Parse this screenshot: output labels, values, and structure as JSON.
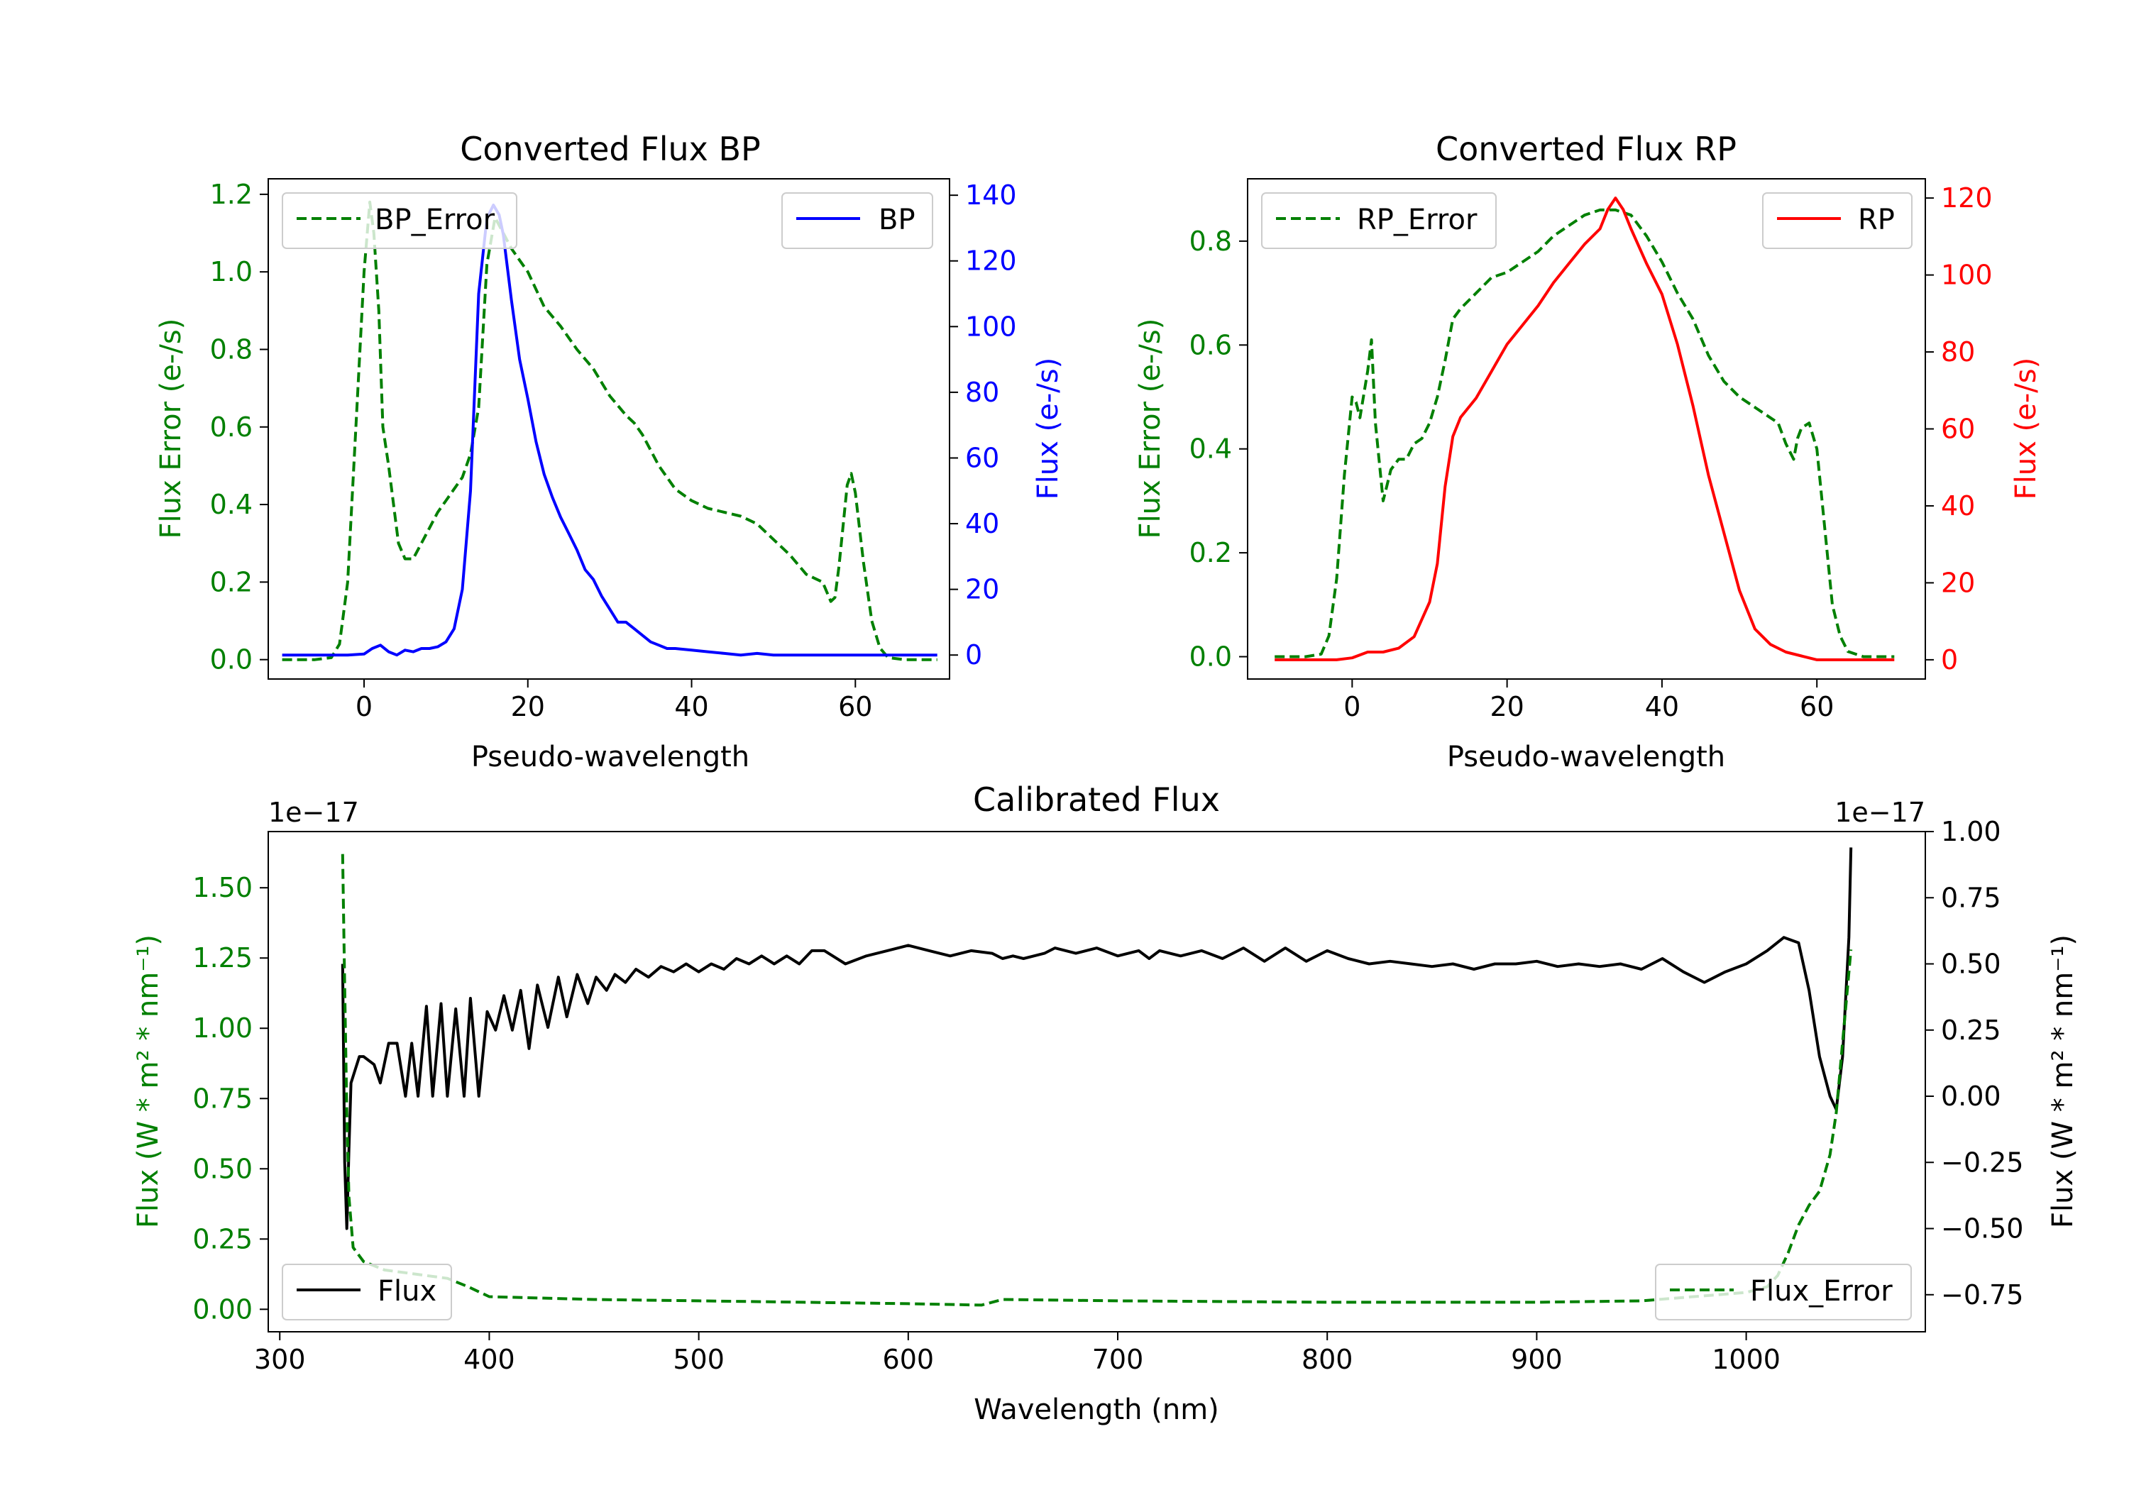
{
  "chart_data": [
    {
      "id": "bp",
      "type": "line",
      "title": "Converted Flux BP",
      "xlabel": "Pseudo-wavelength",
      "ylabel_left": "Flux Error (e-/s)",
      "ylabel_right": "Flux (e-/s)",
      "xlim": [
        -11.7,
        71.5
      ],
      "ylim_left": [
        -0.05,
        1.24
      ],
      "ylim_right": [
        -7.3,
        145
      ],
      "xticks": [
        0,
        20,
        40,
        60
      ],
      "xtick_labels": [
        "0",
        "20",
        "40",
        "60"
      ],
      "yticks_left": [
        0.0,
        0.2,
        0.4,
        0.6,
        0.8,
        1.0,
        1.2
      ],
      "ytick_labels_left": [
        "0.0",
        "0.2",
        "0.4",
        "0.6",
        "0.8",
        "1.0",
        "1.2"
      ],
      "yticks_right": [
        0,
        20,
        40,
        60,
        80,
        100,
        120,
        140
      ],
      "ytick_labels_right": [
        "0",
        "20",
        "40",
        "60",
        "80",
        "100",
        "120",
        "140"
      ],
      "left_color": "#008000",
      "right_color": "#0000ff",
      "series": [
        {
          "name": "BP_Error",
          "axis": "left",
          "color": "#008000",
          "style": "dashed",
          "x": [
            -10,
            -6,
            -4,
            -3,
            -2,
            -1,
            0,
            0.7,
            1.2,
            1.8,
            2.3,
            3,
            3.3,
            4.2,
            5,
            6,
            7,
            8,
            9,
            10,
            11,
            12,
            13,
            14,
            15,
            16,
            17,
            18,
            19,
            20,
            22,
            24,
            26,
            28,
            30,
            32,
            33,
            34,
            36,
            38,
            40,
            42,
            44,
            46,
            48,
            50,
            52,
            54,
            55,
            56,
            57,
            57.5,
            58,
            59,
            59.5,
            60,
            61,
            62,
            63,
            64,
            66,
            68,
            70
          ],
          "y": [
            0.0,
            0.0,
            0.005,
            0.04,
            0.2,
            0.6,
            1.0,
            1.18,
            1.1,
            0.9,
            0.6,
            0.5,
            0.45,
            0.3,
            0.26,
            0.26,
            0.3,
            0.34,
            0.38,
            0.41,
            0.44,
            0.47,
            0.53,
            0.65,
            1.02,
            1.14,
            1.1,
            1.06,
            1.03,
            1.0,
            0.91,
            0.86,
            0.8,
            0.75,
            0.68,
            0.63,
            0.61,
            0.58,
            0.5,
            0.44,
            0.41,
            0.39,
            0.38,
            0.37,
            0.35,
            0.31,
            0.27,
            0.22,
            0.21,
            0.2,
            0.15,
            0.16,
            0.24,
            0.45,
            0.48,
            0.43,
            0.25,
            0.1,
            0.03,
            0.005,
            0.0,
            0.0,
            0.0
          ]
        },
        {
          "name": "BP",
          "axis": "right",
          "color": "#0000ff",
          "style": "solid",
          "x": [
            -10,
            -6,
            -4,
            -2,
            0,
            1,
            2,
            3,
            4,
            5,
            6,
            7,
            8,
            9,
            10,
            11,
            12,
            13,
            14,
            15,
            15.8,
            16.5,
            17,
            18,
            19,
            20,
            21,
            22,
            23,
            24,
            25,
            26,
            27,
            28,
            29,
            30,
            31,
            32,
            33,
            34,
            35,
            36,
            37,
            38,
            40,
            42,
            44,
            46,
            48,
            50,
            52,
            54,
            56,
            58,
            60,
            62,
            64,
            66,
            68,
            70
          ],
          "y": [
            0,
            0,
            0,
            0,
            0.3,
            2,
            3,
            1,
            0,
            1.5,
            1,
            2,
            2,
            2.5,
            4,
            8,
            20,
            50,
            110,
            133,
            137,
            134,
            128,
            108,
            90,
            78,
            65,
            55,
            48,
            42,
            37,
            32,
            26,
            23,
            18,
            14,
            10,
            10,
            8,
            6,
            4,
            3,
            2,
            2,
            1.5,
            1,
            0.5,
            0,
            0.5,
            0,
            0,
            0,
            0,
            0,
            0,
            0,
            0,
            0,
            0,
            0
          ]
        }
      ],
      "legend": [
        {
          "label": "BP_Error",
          "color": "#008000",
          "style": "dashed",
          "position": "upper-left"
        },
        {
          "label": "BP",
          "color": "#0000ff",
          "style": "solid",
          "position": "upper-right"
        }
      ]
    },
    {
      "id": "rp",
      "type": "line",
      "title": "Converted Flux RP",
      "xlabel": "Pseudo-wavelength",
      "ylabel_left": "Flux Error (e-/s)",
      "ylabel_right": "Flux (e-/s)",
      "xlim": [
        -13.5,
        74
      ],
      "ylim_left": [
        -0.043,
        0.92
      ],
      "ylim_right": [
        -5,
        125
      ],
      "xticks": [
        0,
        20,
        40,
        60
      ],
      "xtick_labels": [
        "0",
        "20",
        "40",
        "60"
      ],
      "yticks_left": [
        0.0,
        0.2,
        0.4,
        0.6,
        0.8
      ],
      "ytick_labels_left": [
        "0.0",
        "0.2",
        "0.4",
        "0.6",
        "0.8"
      ],
      "yticks_right": [
        0,
        20,
        40,
        60,
        80,
        100,
        120
      ],
      "ytick_labels_right": [
        "0",
        "20",
        "40",
        "60",
        "80",
        "100",
        "120"
      ],
      "left_color": "#008000",
      "right_color": "#ff0000",
      "series": [
        {
          "name": "RP_Error",
          "axis": "left",
          "color": "#008000",
          "style": "dashed",
          "x": [
            -10,
            -6,
            -4,
            -3,
            -2,
            -1,
            0,
            0.5,
            1,
            2,
            2.5,
            3,
            4,
            5,
            6,
            7,
            8,
            9,
            10,
            11,
            12,
            13,
            14,
            16,
            18,
            20,
            22,
            24,
            26,
            28,
            30,
            32,
            34,
            36,
            38,
            40,
            42,
            44,
            46,
            48,
            50,
            52,
            54,
            55,
            56,
            57,
            57.5,
            58,
            59,
            60,
            61,
            62,
            63,
            64,
            66,
            68,
            70
          ],
          "y": [
            0.0,
            0.0,
            0.005,
            0.04,
            0.15,
            0.35,
            0.5,
            0.49,
            0.46,
            0.55,
            0.61,
            0.45,
            0.3,
            0.36,
            0.38,
            0.38,
            0.41,
            0.42,
            0.45,
            0.5,
            0.57,
            0.65,
            0.67,
            0.7,
            0.73,
            0.74,
            0.76,
            0.78,
            0.81,
            0.83,
            0.85,
            0.86,
            0.86,
            0.85,
            0.81,
            0.76,
            0.7,
            0.65,
            0.58,
            0.53,
            0.5,
            0.48,
            0.46,
            0.45,
            0.41,
            0.38,
            0.42,
            0.44,
            0.45,
            0.4,
            0.25,
            0.1,
            0.04,
            0.01,
            0.0,
            0.0,
            0.0
          ]
        },
        {
          "name": "RP",
          "axis": "right",
          "color": "#ff0000",
          "style": "solid",
          "x": [
            -10,
            -6,
            -4,
            -2,
            0,
            2,
            4,
            6,
            8,
            10,
            11,
            12,
            13,
            14,
            16,
            18,
            20,
            22,
            24,
            26,
            28,
            30,
            32,
            33,
            34,
            35,
            36,
            38,
            40,
            42,
            44,
            46,
            48,
            50,
            52,
            54,
            56,
            58,
            60,
            62,
            64,
            66,
            68,
            70
          ],
          "y": [
            0,
            0,
            0,
            0,
            0.5,
            2,
            2,
            3,
            6,
            15,
            25,
            45,
            58,
            63,
            68,
            75,
            82,
            87,
            92,
            98,
            103,
            108,
            112,
            117,
            120,
            117,
            112,
            103,
            95,
            82,
            66,
            48,
            33,
            18,
            8,
            4,
            2,
            1,
            0,
            0,
            0,
            0,
            0,
            0
          ]
        }
      ],
      "legend": [
        {
          "label": "RP_Error",
          "color": "#008000",
          "style": "dashed",
          "position": "upper-left"
        },
        {
          "label": "RP",
          "color": "#ff0000",
          "style": "solid",
          "position": "upper-right"
        }
      ]
    },
    {
      "id": "cal",
      "type": "line",
      "title": "Calibrated Flux",
      "xlabel": "Wavelength (nm)",
      "ylabel_left": "Flux (W * m² * nm⁻¹)",
      "ylabel_right": "Flux (W * m² * nm⁻¹)",
      "offset_left": "1e−17",
      "offset_right": "1e−17",
      "xlim": [
        294.5,
        1085.5
      ],
      "ylim_left": [
        -0.08,
        1.7
      ],
      "ylim_right": [
        -0.89,
        1.0
      ],
      "xticks": [
        300,
        400,
        500,
        600,
        700,
        800,
        900,
        1000
      ],
      "xtick_labels": [
        "300",
        "400",
        "500",
        "600",
        "700",
        "800",
        "900",
        "1000"
      ],
      "yticks_left": [
        0.0,
        0.25,
        0.5,
        0.75,
        1.0,
        1.25,
        1.5
      ],
      "ytick_labels_left": [
        "0.00",
        "0.25",
        "0.50",
        "0.75",
        "1.00",
        "1.25",
        "1.50"
      ],
      "yticks_right": [
        -0.75,
        -0.5,
        -0.25,
        0.0,
        0.25,
        0.5,
        0.75,
        1.0
      ],
      "ytick_labels_right": [
        "−0.75",
        "−0.50",
        "−0.25",
        "0.00",
        "0.25",
        "0.50",
        "0.75",
        "1.00"
      ],
      "left_color": "#008000",
      "right_color": "#000000",
      "series": [
        {
          "name": "Flux",
          "axis": "right",
          "color": "#000000",
          "style": "solid",
          "x": [
            330,
            331,
            332,
            333,
            334,
            336,
            338,
            340,
            345,
            348,
            352,
            356,
            360,
            363,
            366,
            370,
            373,
            377,
            380,
            384,
            388,
            391,
            395,
            399,
            403,
            407,
            411,
            415,
            419,
            423,
            428,
            433,
            437,
            442,
            447,
            451,
            456,
            460,
            465,
            470,
            476,
            482,
            488,
            494,
            500,
            506,
            512,
            518,
            524,
            530,
            536,
            542,
            548,
            554,
            560,
            570,
            580,
            590,
            600,
            610,
            620,
            630,
            640,
            645,
            650,
            655,
            660,
            665,
            670,
            680,
            690,
            700,
            710,
            715,
            720,
            730,
            740,
            750,
            760,
            770,
            780,
            790,
            800,
            810,
            820,
            830,
            840,
            850,
            860,
            870,
            880,
            890,
            900,
            910,
            920,
            930,
            940,
            950,
            960,
            970,
            980,
            990,
            1000,
            1010,
            1018,
            1025,
            1030,
            1035,
            1040,
            1043,
            1046,
            1049,
            1050
          ],
          "y": [
            0.5,
            -0.25,
            -0.5,
            -0.2,
            0.05,
            0.1,
            0.15,
            0.15,
            0.12,
            0.05,
            0.2,
            0.2,
            0.0,
            0.2,
            0.0,
            0.34,
            0.0,
            0.35,
            0.0,
            0.33,
            0.0,
            0.37,
            0.0,
            0.32,
            0.25,
            0.38,
            0.25,
            0.4,
            0.18,
            0.42,
            0.26,
            0.45,
            0.3,
            0.46,
            0.35,
            0.45,
            0.4,
            0.46,
            0.43,
            0.48,
            0.45,
            0.49,
            0.47,
            0.5,
            0.47,
            0.5,
            0.48,
            0.52,
            0.5,
            0.53,
            0.5,
            0.53,
            0.5,
            0.55,
            0.55,
            0.5,
            0.53,
            0.55,
            0.57,
            0.55,
            0.53,
            0.55,
            0.54,
            0.52,
            0.53,
            0.52,
            0.53,
            0.54,
            0.56,
            0.54,
            0.56,
            0.53,
            0.55,
            0.52,
            0.55,
            0.53,
            0.55,
            0.52,
            0.56,
            0.51,
            0.56,
            0.51,
            0.55,
            0.52,
            0.5,
            0.51,
            0.5,
            0.49,
            0.5,
            0.48,
            0.5,
            0.5,
            0.51,
            0.49,
            0.5,
            0.49,
            0.5,
            0.48,
            0.52,
            0.47,
            0.43,
            0.47,
            0.5,
            0.55,
            0.6,
            0.58,
            0.4,
            0.15,
            0.0,
            -0.05,
            0.15,
            0.6,
            0.94
          ]
        },
        {
          "name": "Flux_Error",
          "axis": "left",
          "color": "#008000",
          "style": "dashed",
          "x": [
            330,
            331,
            332,
            333,
            335,
            340,
            350,
            360,
            370,
            380,
            390,
            400,
            450,
            500,
            550,
            600,
            635,
            640,
            645,
            700,
            800,
            900,
            950,
            1000,
            1010,
            1015,
            1020,
            1025,
            1030,
            1035,
            1040,
            1043,
            1046,
            1050
          ],
          "y": [
            1.62,
            1.15,
            0.7,
            0.4,
            0.22,
            0.17,
            0.14,
            0.13,
            0.12,
            0.11,
            0.08,
            0.045,
            0.035,
            0.03,
            0.025,
            0.02,
            0.015,
            0.025,
            0.035,
            0.03,
            0.025,
            0.025,
            0.03,
            0.06,
            0.08,
            0.12,
            0.2,
            0.3,
            0.37,
            0.42,
            0.55,
            0.7,
            0.95,
            1.28
          ]
        }
      ],
      "legend": [
        {
          "label": "Flux",
          "color": "#000000",
          "style": "solid",
          "position": "lower-left"
        },
        {
          "label": "Flux_Error",
          "color": "#008000",
          "style": "dashed",
          "position": "lower-right"
        }
      ]
    }
  ]
}
